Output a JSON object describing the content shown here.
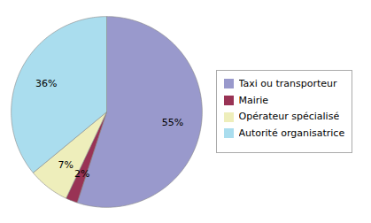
{
  "chart_data": {
    "type": "pie",
    "categories": [
      "Taxi ou transporteur",
      "Mairie",
      "Opérateur spécialisé",
      "Autorité organisatrice"
    ],
    "values": [
      55,
      2,
      7,
      36
    ],
    "value_labels": [
      "55%",
      "2%",
      "7%",
      "36%"
    ],
    "colors": [
      "#9999CC",
      "#993355",
      "#EEEEBB",
      "#AADDEE"
    ],
    "data_labels": true,
    "legend": "right"
  }
}
